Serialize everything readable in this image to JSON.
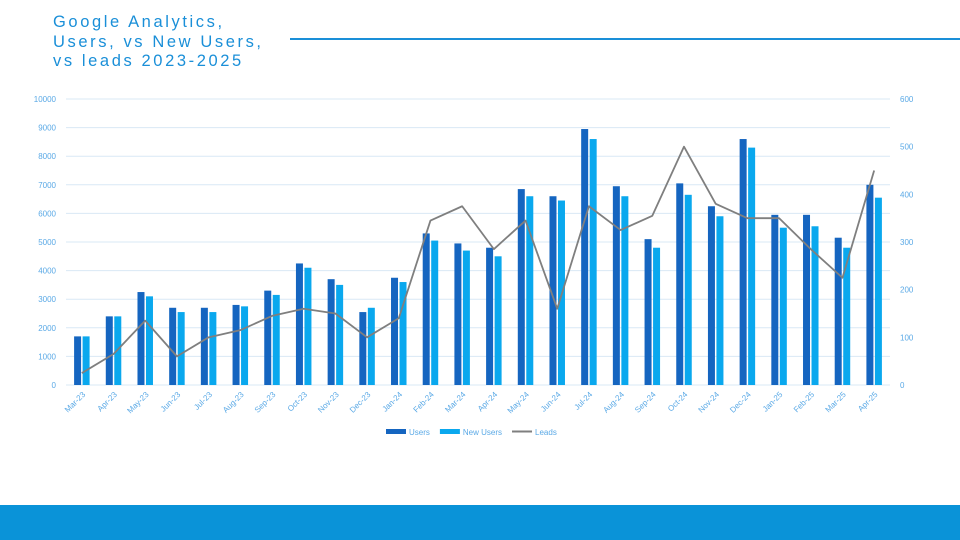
{
  "page": {
    "title_lines": [
      "Google Analytics,",
      "Users, vs New Users,",
      "vs leads 2023-2025"
    ]
  },
  "colors": {
    "title": "#1a8fd8",
    "users": "#1565c0",
    "new_users": "#0aa8ee",
    "leads": "#7f7f7f",
    "grid": "#d9e8f5",
    "tick": "#5aa9e6",
    "footer": "#0a93d8"
  },
  "chart_data": {
    "type": "bar",
    "title": "Google Analytics, Users, vs New Users, vs leads 2023-2025",
    "categories": [
      "Mar-23",
      "Apr-23",
      "May-23",
      "Jun-23",
      "Jul-23",
      "Aug-23",
      "Sep-23",
      "Oct-23",
      "Nov-23",
      "Dec-23",
      "Jan-24",
      "Feb-24",
      "Mar-24",
      "Apr-24",
      "May-24",
      "Jun-24",
      "Jul-24",
      "Aug-24",
      "Sep-24",
      "Oct-24",
      "Nov-24",
      "Dec-24",
      "Jan-25",
      "Feb-25",
      "Mar-25",
      "Apr-25"
    ],
    "series": [
      {
        "name": "Users",
        "type": "bar",
        "axis": "left",
        "values": [
          1700,
          2400,
          3250,
          2700,
          2700,
          2800,
          3300,
          4250,
          3700,
          2550,
          3750,
          5300,
          4950,
          4800,
          6850,
          6600,
          8950,
          6950,
          5100,
          7050,
          6250,
          8600,
          5950,
          5950,
          5150,
          7000
        ]
      },
      {
        "name": "New Users",
        "type": "bar",
        "axis": "left",
        "values": [
          1700,
          2400,
          3100,
          2550,
          2550,
          2750,
          3150,
          4100,
          3500,
          2700,
          3600,
          5050,
          4700,
          4500,
          6600,
          6450,
          8600,
          6600,
          4800,
          6650,
          5900,
          8300,
          5500,
          5550,
          4800,
          6550
        ]
      },
      {
        "name": "Leads",
        "type": "line",
        "axis": "right",
        "values": [
          25,
          65,
          135,
          60,
          100,
          115,
          145,
          160,
          150,
          100,
          140,
          345,
          375,
          285,
          345,
          160,
          375,
          325,
          355,
          500,
          380,
          350,
          350,
          285,
          225,
          450
        ]
      }
    ],
    "y_left": {
      "min": 0,
      "max": 10000,
      "ticks": [
        0,
        1000,
        2000,
        3000,
        4000,
        5000,
        6000,
        7000,
        8000,
        9000,
        10000
      ]
    },
    "y_right": {
      "min": 0,
      "max": 600,
      "ticks": [
        0,
        100,
        200,
        300,
        400,
        500,
        600
      ]
    },
    "grid": true,
    "legend_position": "bottom",
    "legend": [
      "Users",
      "New Users",
      "Leads"
    ]
  }
}
